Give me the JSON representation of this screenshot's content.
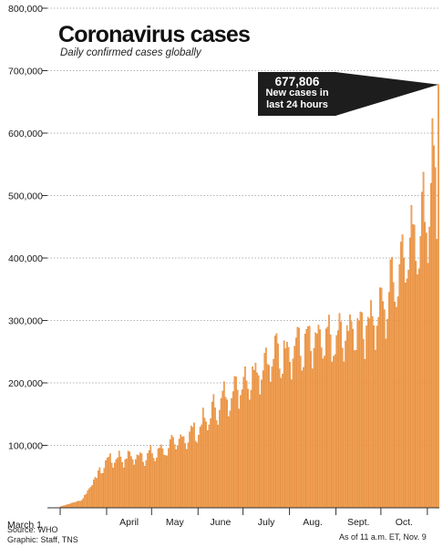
{
  "chart_data": {
    "type": "bar",
    "title": "Coronavirus cases",
    "subtitle": "Daily confirmed cases globally",
    "xlabel": "",
    "ylabel": "",
    "ylim": [
      0,
      800000
    ],
    "y_ticks": [
      0,
      100000,
      200000,
      300000,
      400000,
      500000,
      600000,
      700000,
      800000
    ],
    "y_tick_labels": [
      "",
      "100,000",
      "200,000",
      "300,000",
      "400,000",
      "500,000",
      "600,000",
      "700,000",
      "800,000"
    ],
    "x_start_label": "March 1",
    "x_tick_labels": [
      "April",
      "May",
      "June",
      "July",
      "Aug.",
      "Sept.",
      "Oct."
    ],
    "grid": "horizontal dotted",
    "bar_color": "#f2a55b",
    "bar_edge_color": "#e07b22",
    "x_range": [
      "2020-03-01",
      "2020-11-08"
    ],
    "key_points": [
      {
        "date": "2020-03-01",
        "value": 2000
      },
      {
        "date": "2020-03-15",
        "value": 12000
      },
      {
        "date": "2020-04-01",
        "value": 76000
      },
      {
        "date": "2020-04-15",
        "value": 80000
      },
      {
        "date": "2020-05-01",
        "value": 84000
      },
      {
        "date": "2020-05-15",
        "value": 100000
      },
      {
        "date": "2020-06-01",
        "value": 125000
      },
      {
        "date": "2020-06-15",
        "value": 165000
      },
      {
        "date": "2020-07-01",
        "value": 200000
      },
      {
        "date": "2020-07-15",
        "value": 230000
      },
      {
        "date": "2020-08-01",
        "value": 255000
      },
      {
        "date": "2020-08-15",
        "value": 260000
      },
      {
        "date": "2020-09-01",
        "value": 265000
      },
      {
        "date": "2020-09-15",
        "value": 290000
      },
      {
        "date": "2020-10-01",
        "value": 310000
      },
      {
        "date": "2020-10-15",
        "value": 400000
      },
      {
        "date": "2020-11-01",
        "value": 470000
      },
      {
        "date": "2020-11-08",
        "value": 677806
      }
    ],
    "annotation": {
      "value": "677,806",
      "line1": "New cases in",
      "line2": "last 24 hours",
      "date": "2020-11-08",
      "y": 677806
    }
  },
  "footer": {
    "source": "Source: WHO",
    "graphic": "Graphic: Staff, TNS",
    "asof": "As of 11 a.m. ET, Nov. 9"
  }
}
